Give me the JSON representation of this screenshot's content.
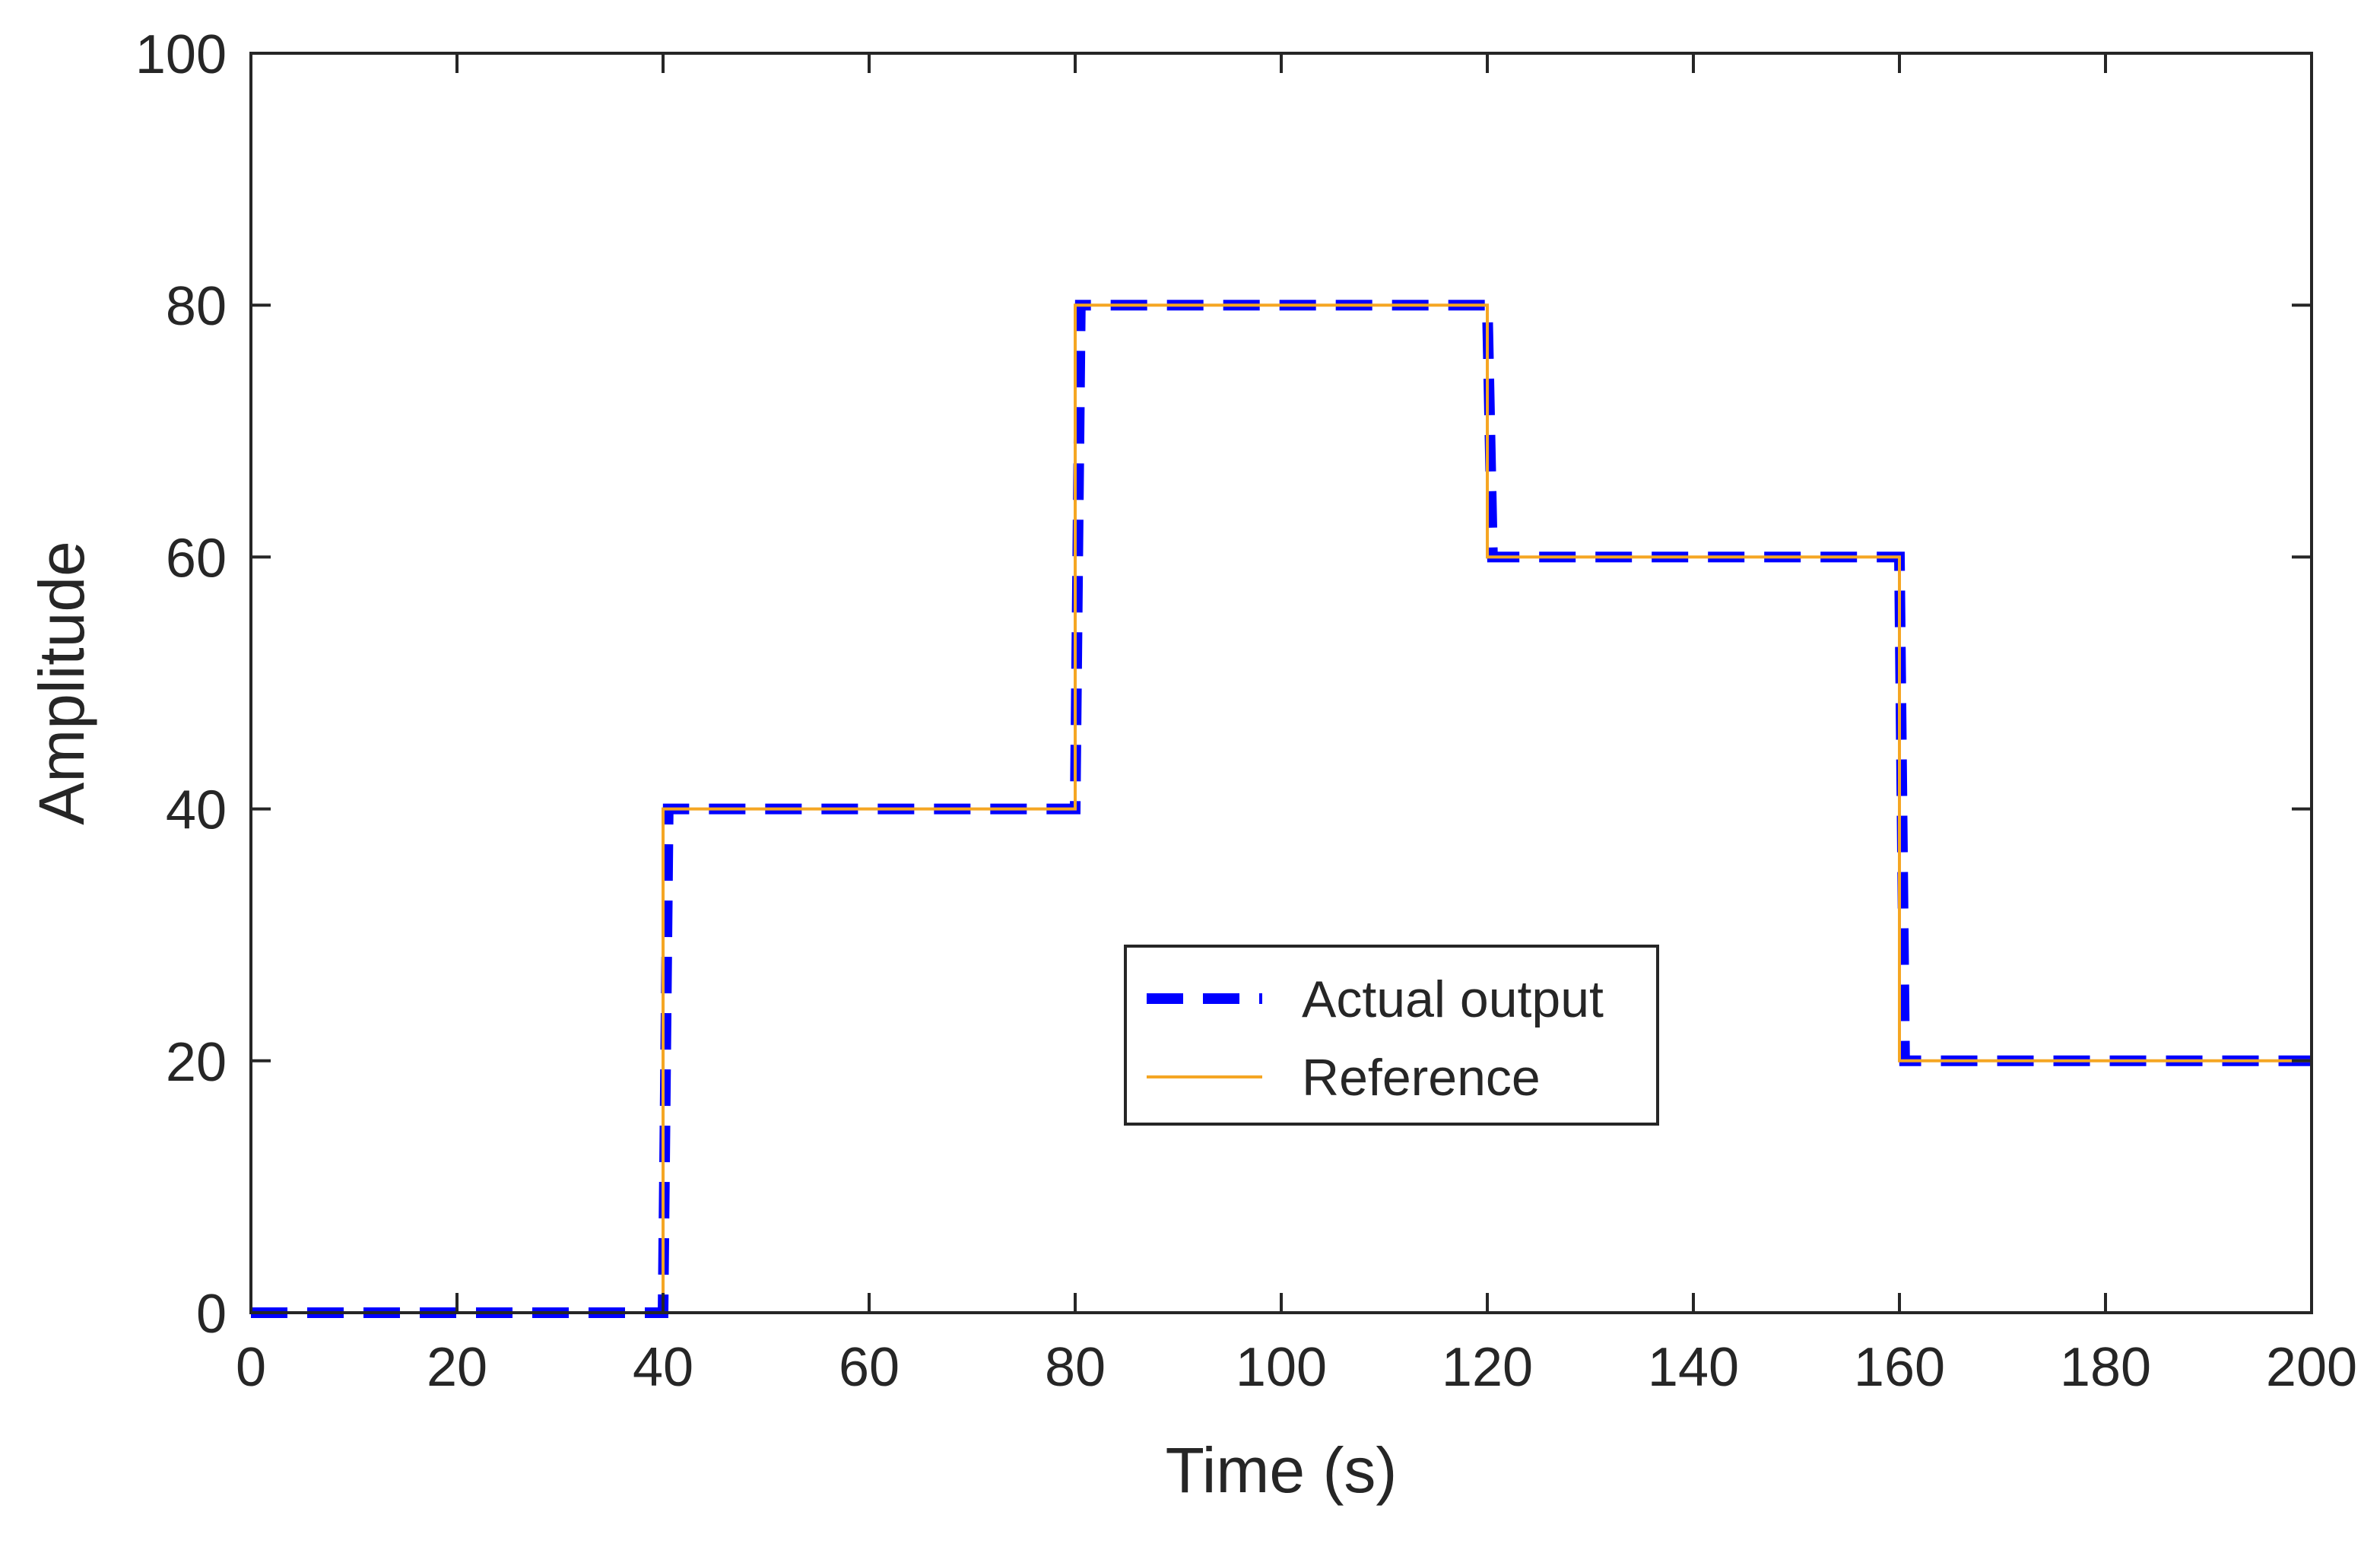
{
  "chart_data": {
    "type": "line",
    "title": "",
    "xlabel": "Time (s)",
    "ylabel": "Amplitude",
    "xlim": [
      0,
      200
    ],
    "ylim": [
      0,
      100
    ],
    "xticks": [
      0,
      20,
      40,
      60,
      80,
      100,
      120,
      140,
      160,
      180,
      200
    ],
    "yticks": [
      0,
      20,
      40,
      60,
      80,
      100
    ],
    "xtick_labels": [
      "0",
      "20",
      "40",
      "60",
      "80",
      "100",
      "120",
      "140",
      "160",
      "180",
      "200"
    ],
    "ytick_labels": [
      "0",
      "20",
      "40",
      "60",
      "80",
      "100"
    ],
    "grid": false,
    "legend_position": "center-right",
    "series": [
      {
        "name": "Actual output",
        "style": "dashed",
        "color": "#0000ff",
        "x": [
          0,
          40,
          40.5,
          80,
          80.5,
          120,
          120.5,
          160,
          160.5,
          200
        ],
        "y": [
          0,
          0,
          40,
          40,
          80,
          80,
          60,
          60,
          20,
          20
        ]
      },
      {
        "name": "Reference",
        "style": "solid",
        "color": "#f5a623",
        "x": [
          0,
          40,
          40,
          80,
          80,
          120,
          120,
          160,
          160,
          200
        ],
        "y": [
          0,
          0,
          40,
          40,
          80,
          80,
          60,
          60,
          20,
          20
        ]
      }
    ]
  }
}
